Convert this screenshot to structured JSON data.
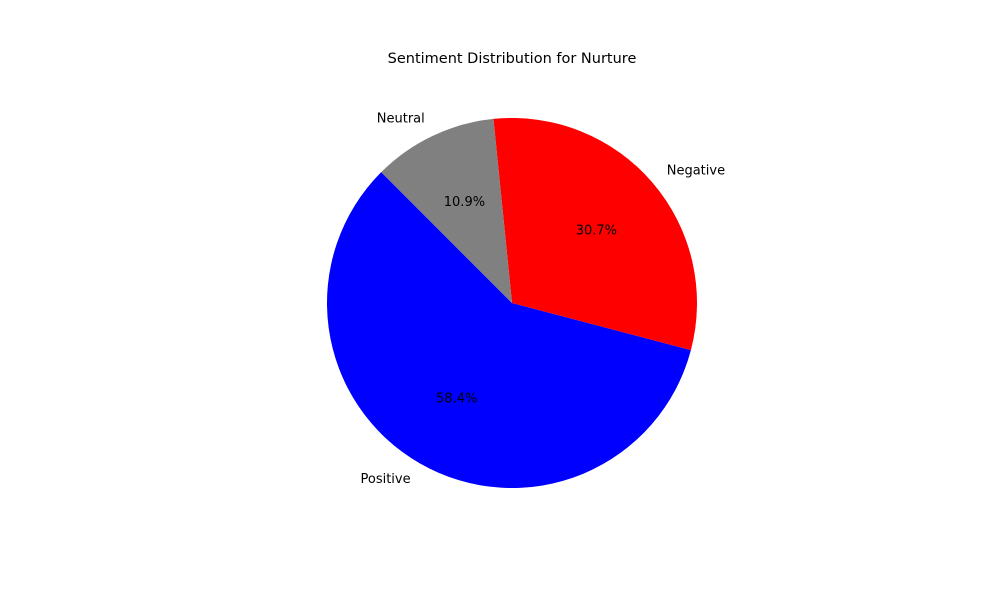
{
  "chart_data": {
    "type": "pie",
    "title": "Sentiment Distribution for Nurture",
    "start_angle_deg": 135,
    "direction": "counterclockwise",
    "slices": [
      {
        "label": "Positive",
        "value": 58.4,
        "pct_label": "58.4%",
        "color": "#0000ff"
      },
      {
        "label": "Negative",
        "value": 30.7,
        "pct_label": "30.7%",
        "color": "#ff0000"
      },
      {
        "label": "Neutral",
        "value": 10.9,
        "pct_label": "10.9%",
        "color": "#808080"
      }
    ],
    "legend": "none",
    "grid": false
  }
}
